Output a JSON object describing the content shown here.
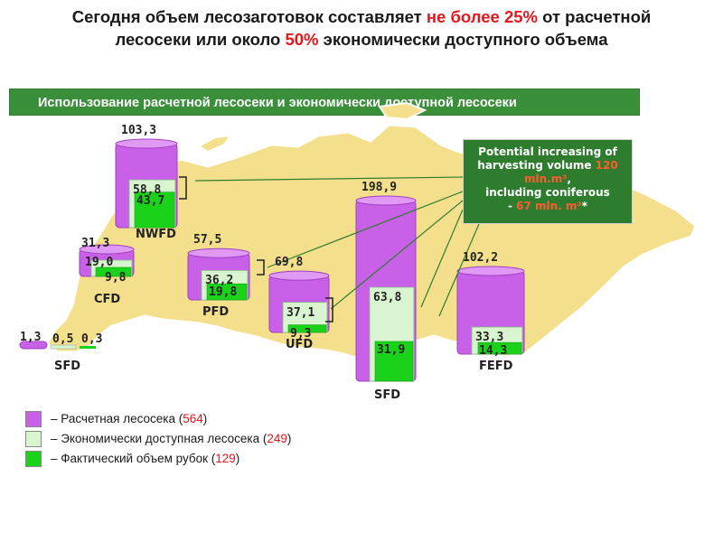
{
  "title": {
    "part1": "Сегодня объем лесозаготовок составляет",
    "highlight1": "не более 25%",
    "part2": "от расчетной лесосеки или около",
    "highlight2": "50%",
    "part3": "экономически доступного объема"
  },
  "banner": "Использование расчетной лесосеки и экономически доступной лесосеки",
  "colors": {
    "allowable": "#c860e8",
    "accessible": "#d8f5d0",
    "actual": "#19d219",
    "map": "#f4e08c",
    "banner": "#3a8f3a",
    "callout": "#2e7d2e",
    "highlight": "#e8151b"
  },
  "callout": {
    "line1": "Potential increasing of",
    "line2": "harvesting volume",
    "value1": "120 mln.m³",
    "line3": ",",
    "line4": "including coniferous",
    "dash": "-",
    "value2": "67 mln. m³",
    "star": "*"
  },
  "legend": [
    {
      "label": "– Расчетная лесосека (",
      "value": "564",
      "close": ")"
    },
    {
      "label": "– Экономически доступная лесосека (",
      "value": "249",
      "close": ")"
    },
    {
      "label": "– Фактический объем рубок (",
      "value": "129",
      "close": ")"
    }
  ],
  "chart_data": {
    "type": "bar",
    "categories": [
      "NWFD",
      "CFD",
      "PFD",
      "UFD",
      "SFD",
      "FEFD",
      "SFD"
    ],
    "series": [
      {
        "name": "Расчетная лесосека",
        "values": [
          103.3,
          31.3,
          57.5,
          69.8,
          198.9,
          102.2,
          1.3
        ]
      },
      {
        "name": "Экономически доступная лесосека",
        "values": [
          58.8,
          19.0,
          36.2,
          37.1,
          63.8,
          33.3,
          0.5
        ]
      },
      {
        "name": "Фактический объем рубок",
        "values": [
          43.7,
          9.8,
          19.8,
          9.3,
          31.9,
          14.3,
          0.3
        ]
      }
    ],
    "value_labels": {
      "NWFD": [
        "103,3",
        "58,8",
        "43,7"
      ],
      "CFD": [
        "31,3",
        "19,0",
        "9,8"
      ],
      "PFD": [
        "57,5",
        "36,2",
        "19,8"
      ],
      "UFD": [
        "69,8",
        "37,1",
        "9,3"
      ],
      "SFD_big": [
        "198,9",
        "63,8",
        "31,9"
      ],
      "FEFD": [
        "102,2",
        "33,3",
        "14,3"
      ],
      "SFD_small": [
        "1,3",
        "0,5",
        "0,3"
      ]
    }
  }
}
